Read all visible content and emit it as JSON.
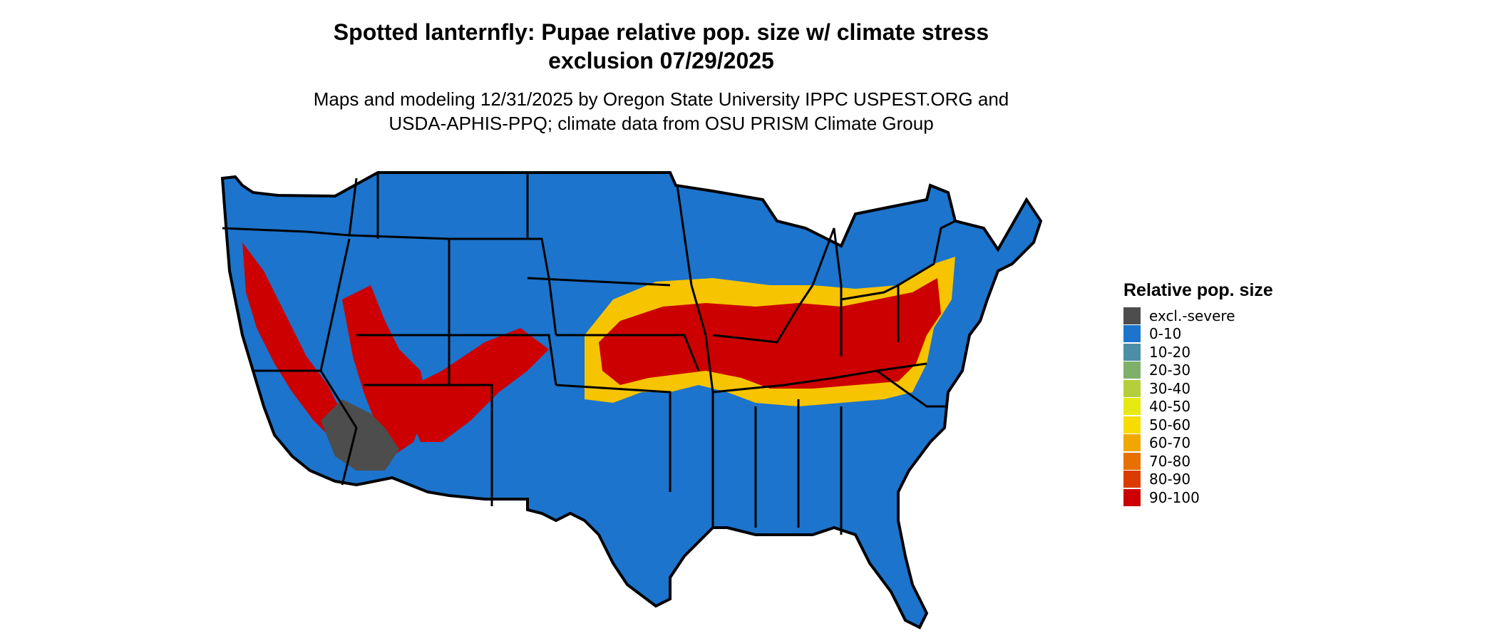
{
  "title": {
    "line1": "Spotted lanternfly: Pupae relative pop. size w/ climate stress",
    "line2": "exclusion 07/29/2025"
  },
  "subtitle": {
    "line1": "Maps and modeling 12/31/2025 by Oregon State University IPPC USPEST.ORG and",
    "line2": "USDA-APHIS-PPQ; climate data from OSU PRISM Climate Group"
  },
  "map": {
    "region": "Contiguous United States",
    "colors": {
      "background": "#1c74cc",
      "excl": "#4d4d4d",
      "hot": "#cc0000",
      "warm": "#f6c400",
      "mid": "#7fb069",
      "border": "#000000"
    }
  },
  "legend": {
    "title": "Relative pop. size",
    "items": [
      {
        "label": "excl.-severe",
        "color": "#4d4d4d"
      },
      {
        "label": "0-10",
        "color": "#1c74cc"
      },
      {
        "label": "10-20",
        "color": "#4a8fa6"
      },
      {
        "label": "20-30",
        "color": "#7fb069"
      },
      {
        "label": "30-40",
        "color": "#b5cf3a"
      },
      {
        "label": "40-50",
        "color": "#e6ea10"
      },
      {
        "label": "50-60",
        "color": "#f6dc00"
      },
      {
        "label": "60-70",
        "color": "#f0a800"
      },
      {
        "label": "70-80",
        "color": "#e67000"
      },
      {
        "label": "80-90",
        "color": "#db3a00"
      },
      {
        "label": "90-100",
        "color": "#cc0000"
      }
    ]
  }
}
